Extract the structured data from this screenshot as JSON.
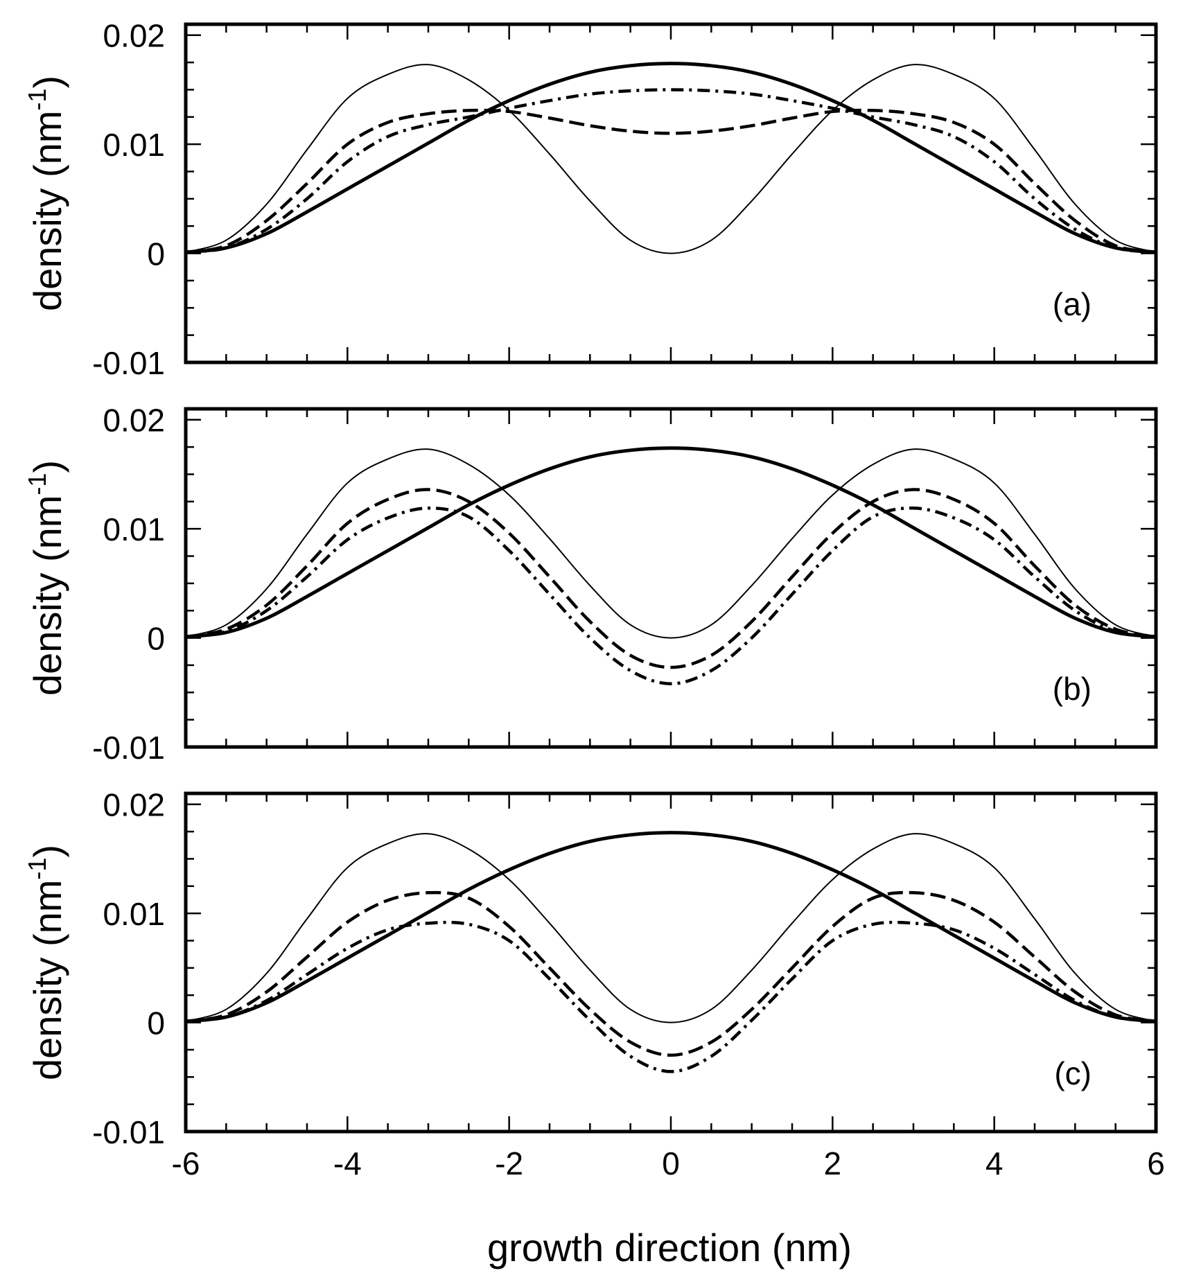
{
  "figure": {
    "xlabel": "growth direction (nm)",
    "ylabel_main": "density (nm",
    "ylabel_sup": "-1",
    "ylabel_close": ")"
  },
  "chart_data": [
    {
      "type": "line",
      "panel_label": "(a)",
      "xlabel": "growth direction (nm)",
      "ylabel": "density (nm-1)",
      "xlim": [
        -6,
        6
      ],
      "ylim": [
        -0.01,
        0.021
      ],
      "xticks": [
        -6,
        -4,
        -2,
        0,
        2,
        4,
        6
      ],
      "yticks": [
        -0.01,
        0,
        0.01,
        0.02
      ],
      "ytick_labels": [
        "-0.01",
        "0",
        "0.01",
        "0.02"
      ],
      "x": [
        -6,
        -5.5,
        -5,
        -4.5,
        -4,
        -3.5,
        -3,
        -2.5,
        -2,
        -1.5,
        -1,
        -0.5,
        0,
        0.5,
        1,
        1.5,
        2,
        2.5,
        3,
        3.5,
        4,
        4.5,
        5,
        5.5,
        6
      ],
      "series": [
        {
          "style": "thin-solid",
          "values": [
            0.0001,
            0.0012,
            0.0045,
            0.0095,
            0.0142,
            0.0164,
            0.0173,
            0.0159,
            0.0131,
            0.0091,
            0.0048,
            0.0012,
            0.0,
            0.0012,
            0.0048,
            0.0091,
            0.0131,
            0.0159,
            0.0173,
            0.0164,
            0.0142,
            0.0095,
            0.0045,
            0.0012,
            0.0001
          ]
        },
        {
          "style": "dashed",
          "values": [
            0.0001,
            0.0007,
            0.003,
            0.0064,
            0.01,
            0.012,
            0.0128,
            0.0131,
            0.013,
            0.0124,
            0.0117,
            0.0112,
            0.011,
            0.0112,
            0.0117,
            0.0124,
            0.013,
            0.0131,
            0.0128,
            0.012,
            0.01,
            0.0064,
            0.003,
            0.0007,
            0.0001
          ]
        },
        {
          "style": "dash-dot",
          "values": [
            0.0001,
            0.0005,
            0.0022,
            0.005,
            0.0084,
            0.0107,
            0.0118,
            0.0125,
            0.0133,
            0.014,
            0.0146,
            0.0149,
            0.015,
            0.0149,
            0.0146,
            0.014,
            0.0133,
            0.0125,
            0.0118,
            0.0107,
            0.0084,
            0.005,
            0.0022,
            0.0005,
            0.0001
          ]
        },
        {
          "style": "thick-solid",
          "values": [
            0.0001,
            0.0005,
            0.0018,
            0.0038,
            0.0059,
            0.008,
            0.0101,
            0.0122,
            0.014,
            0.0155,
            0.0166,
            0.0172,
            0.0174,
            0.0172,
            0.0166,
            0.0155,
            0.014,
            0.0122,
            0.0101,
            0.008,
            0.0059,
            0.0038,
            0.0018,
            0.0005,
            0.0001
          ]
        }
      ]
    },
    {
      "type": "line",
      "panel_label": "(b)",
      "xlabel": "growth direction (nm)",
      "ylabel": "density (nm-1)",
      "xlim": [
        -6,
        6
      ],
      "ylim": [
        -0.01,
        0.021
      ],
      "xticks": [
        -6,
        -4,
        -2,
        0,
        2,
        4,
        6
      ],
      "yticks": [
        -0.01,
        0,
        0.01,
        0.02
      ],
      "ytick_labels": [
        "-0.01",
        "0",
        "0.01",
        "0.02"
      ],
      "x": [
        -6,
        -5.5,
        -5,
        -4.5,
        -4,
        -3.5,
        -3,
        -2.5,
        -2,
        -1.5,
        -1,
        -0.5,
        0,
        0.5,
        1,
        1.5,
        2,
        2.5,
        3,
        3.5,
        4,
        4.5,
        5,
        5.5,
        6
      ],
      "series": [
        {
          "style": "thin-solid",
          "values": [
            0.0001,
            0.0012,
            0.0045,
            0.0095,
            0.0142,
            0.0164,
            0.0173,
            0.0159,
            0.0131,
            0.0091,
            0.0048,
            0.0012,
            0.0,
            0.0012,
            0.0048,
            0.0091,
            0.0131,
            0.0159,
            0.0173,
            0.0164,
            0.0142,
            0.0095,
            0.0045,
            0.0012,
            0.0001
          ]
        },
        {
          "style": "dashed",
          "values": [
            0.0001,
            0.0008,
            0.003,
            0.0066,
            0.0105,
            0.0127,
            0.0136,
            0.0125,
            0.0096,
            0.0056,
            0.0015,
            -0.0016,
            -0.0027,
            -0.0016,
            0.0015,
            0.0056,
            0.0096,
            0.0125,
            0.0136,
            0.0127,
            0.0105,
            0.0066,
            0.003,
            0.0008,
            0.0001
          ]
        },
        {
          "style": "dash-dot",
          "values": [
            0.0001,
            0.0006,
            0.0025,
            0.0056,
            0.009,
            0.011,
            0.0119,
            0.0111,
            0.008,
            0.004,
            0.0,
            -0.003,
            -0.0042,
            -0.003,
            0.0,
            0.004,
            0.008,
            0.0111,
            0.0119,
            0.011,
            0.009,
            0.0056,
            0.0025,
            0.0006,
            0.0001
          ]
        },
        {
          "style": "thick-solid",
          "values": [
            0.0001,
            0.0005,
            0.0018,
            0.0038,
            0.0059,
            0.008,
            0.0101,
            0.0122,
            0.014,
            0.0155,
            0.0166,
            0.0172,
            0.0174,
            0.0172,
            0.0166,
            0.0155,
            0.014,
            0.0122,
            0.0101,
            0.008,
            0.0059,
            0.0038,
            0.0018,
            0.0005,
            0.0001
          ]
        }
      ]
    },
    {
      "type": "line",
      "panel_label": "(c)",
      "xlabel": "growth direction (nm)",
      "ylabel": "density (nm-1)",
      "xlim": [
        -6,
        6
      ],
      "ylim": [
        -0.01,
        0.021
      ],
      "xticks": [
        -6,
        -4,
        -2,
        0,
        2,
        4,
        6
      ],
      "xtick_labels": [
        "-6",
        "-4",
        "-2",
        "0",
        "2",
        "4",
        "6"
      ],
      "yticks": [
        -0.01,
        0,
        0.01,
        0.02
      ],
      "ytick_labels": [
        "-0.01",
        "0",
        "0.01",
        "0.02"
      ],
      "x": [
        -6,
        -5.5,
        -5,
        -4.5,
        -4,
        -3.5,
        -3,
        -2.5,
        -2,
        -1.5,
        -1,
        -0.5,
        0,
        0.5,
        1,
        1.5,
        2,
        2.5,
        3,
        3.5,
        4,
        4.5,
        5,
        5.5,
        6
      ],
      "series": [
        {
          "style": "thin-solid",
          "values": [
            0.0001,
            0.0012,
            0.0045,
            0.0095,
            0.0142,
            0.0164,
            0.0173,
            0.0159,
            0.0131,
            0.0091,
            0.0048,
            0.0012,
            0.0,
            0.0012,
            0.0048,
            0.0091,
            0.0131,
            0.0159,
            0.0173,
            0.0164,
            0.0142,
            0.0095,
            0.0045,
            0.0012,
            0.0001
          ]
        },
        {
          "style": "dashed",
          "values": [
            0.0001,
            0.0007,
            0.0028,
            0.006,
            0.0092,
            0.0112,
            0.0119,
            0.0114,
            0.0088,
            0.005,
            0.0012,
            -0.0018,
            -0.003,
            -0.0018,
            0.0012,
            0.005,
            0.0088,
            0.0114,
            0.0119,
            0.0112,
            0.0092,
            0.006,
            0.0028,
            0.0007,
            0.0001
          ]
        },
        {
          "style": "dash-dot",
          "values": [
            0.0001,
            0.0005,
            0.002,
            0.0044,
            0.0068,
            0.0085,
            0.0091,
            0.009,
            0.0075,
            0.004,
            0.0002,
            -0.0031,
            -0.0045,
            -0.0031,
            0.0002,
            0.004,
            0.0075,
            0.009,
            0.0091,
            0.0085,
            0.0068,
            0.0044,
            0.002,
            0.0005,
            0.0001
          ]
        },
        {
          "style": "thick-solid",
          "values": [
            0.0001,
            0.0005,
            0.0018,
            0.0038,
            0.0059,
            0.008,
            0.0101,
            0.0122,
            0.014,
            0.0155,
            0.0166,
            0.0172,
            0.0174,
            0.0172,
            0.0166,
            0.0155,
            0.014,
            0.0122,
            0.0101,
            0.008,
            0.0059,
            0.0038,
            0.0018,
            0.0005,
            0.0001
          ]
        }
      ]
    }
  ]
}
